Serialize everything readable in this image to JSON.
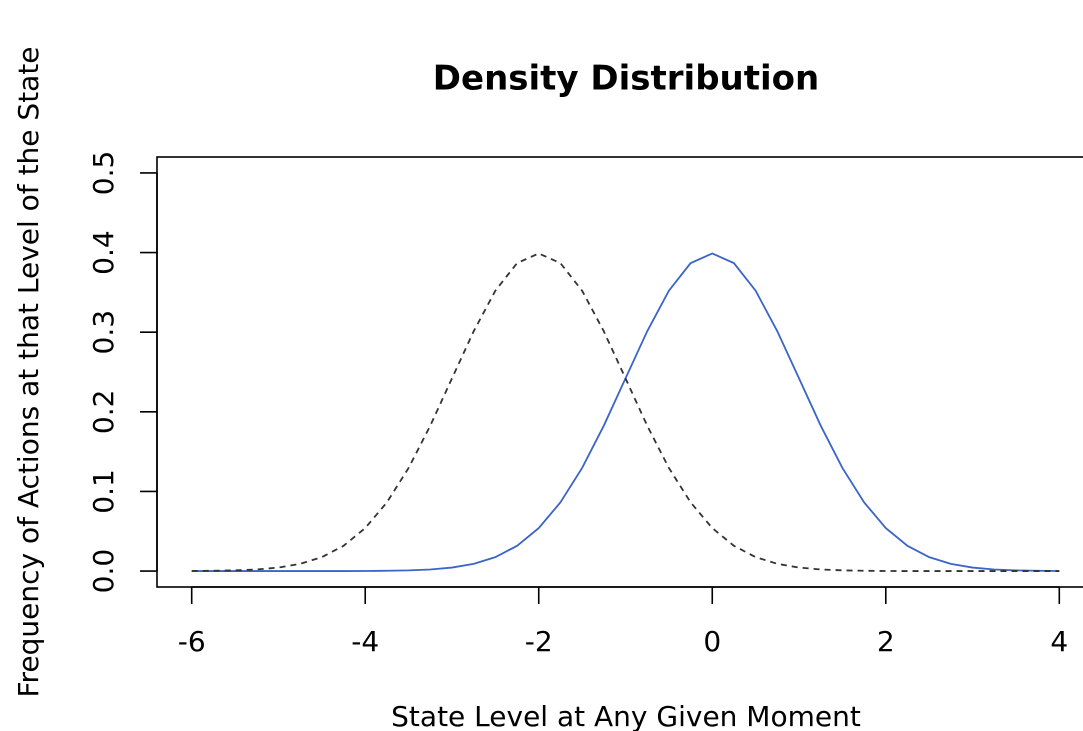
{
  "chart_data": {
    "type": "line",
    "title": "Density Distribution",
    "xlabel": "State Level at Any Given Moment",
    "ylabel": "Frequency of Actions at that Level of the State",
    "x": [
      -6,
      -5.75,
      -5.5,
      -5.25,
      -5,
      -4.75,
      -4.5,
      -4.25,
      -4,
      -3.75,
      -3.5,
      -3.25,
      -3,
      -2.75,
      -2.5,
      -2.25,
      -2,
      -1.75,
      -1.5,
      -1.25,
      -1,
      -0.75,
      -0.5,
      -0.25,
      0,
      0.25,
      0.5,
      0.75,
      1,
      1.25,
      1.5,
      1.75,
      2,
      2.25,
      2.5,
      2.75,
      3,
      3.25,
      3.5,
      3.75,
      4
    ],
    "series": [
      {
        "color": "#3b64c9",
        "linestyle": "solid",
        "values": [
          0,
          0,
          0,
          0,
          0,
          0,
          0,
          0,
          0.0001,
          0.0004,
          0.0009,
          0.002,
          0.0044,
          0.0091,
          0.0175,
          0.0317,
          0.054,
          0.0863,
          0.1295,
          0.1826,
          0.242,
          0.3011,
          0.3521,
          0.3867,
          0.3989,
          0.3867,
          0.3521,
          0.3011,
          0.242,
          0.1826,
          0.1295,
          0.0863,
          0.054,
          0.0317,
          0.0175,
          0.0091,
          0.0044,
          0.002,
          0.0009,
          0.0004,
          0.0001
        ]
      },
      {
        "color": "#333333",
        "linestyle": "dashed",
        "values": [
          0.0001,
          0.0004,
          0.0009,
          0.002,
          0.0044,
          0.0091,
          0.0175,
          0.0317,
          0.054,
          0.0863,
          0.1295,
          0.1826,
          0.242,
          0.3011,
          0.3521,
          0.3867,
          0.3989,
          0.3867,
          0.3521,
          0.3011,
          0.242,
          0.1826,
          0.1295,
          0.0863,
          0.054,
          0.0317,
          0.0175,
          0.0091,
          0.0044,
          0.002,
          0.0009,
          0.0004,
          0.0001,
          0,
          0,
          0,
          0,
          0,
          0,
          0,
          0
        ]
      }
    ],
    "xlim": [
      -6.4,
      4.4
    ],
    "ylim": [
      -0.02,
      0.52
    ],
    "xticks": [
      -6,
      -4,
      -2,
      0,
      2,
      4
    ],
    "yticks": [
      {
        "value": 0,
        "label": "0.0"
      },
      0.1,
      0.2,
      0.3,
      0.4,
      0.5
    ]
  }
}
